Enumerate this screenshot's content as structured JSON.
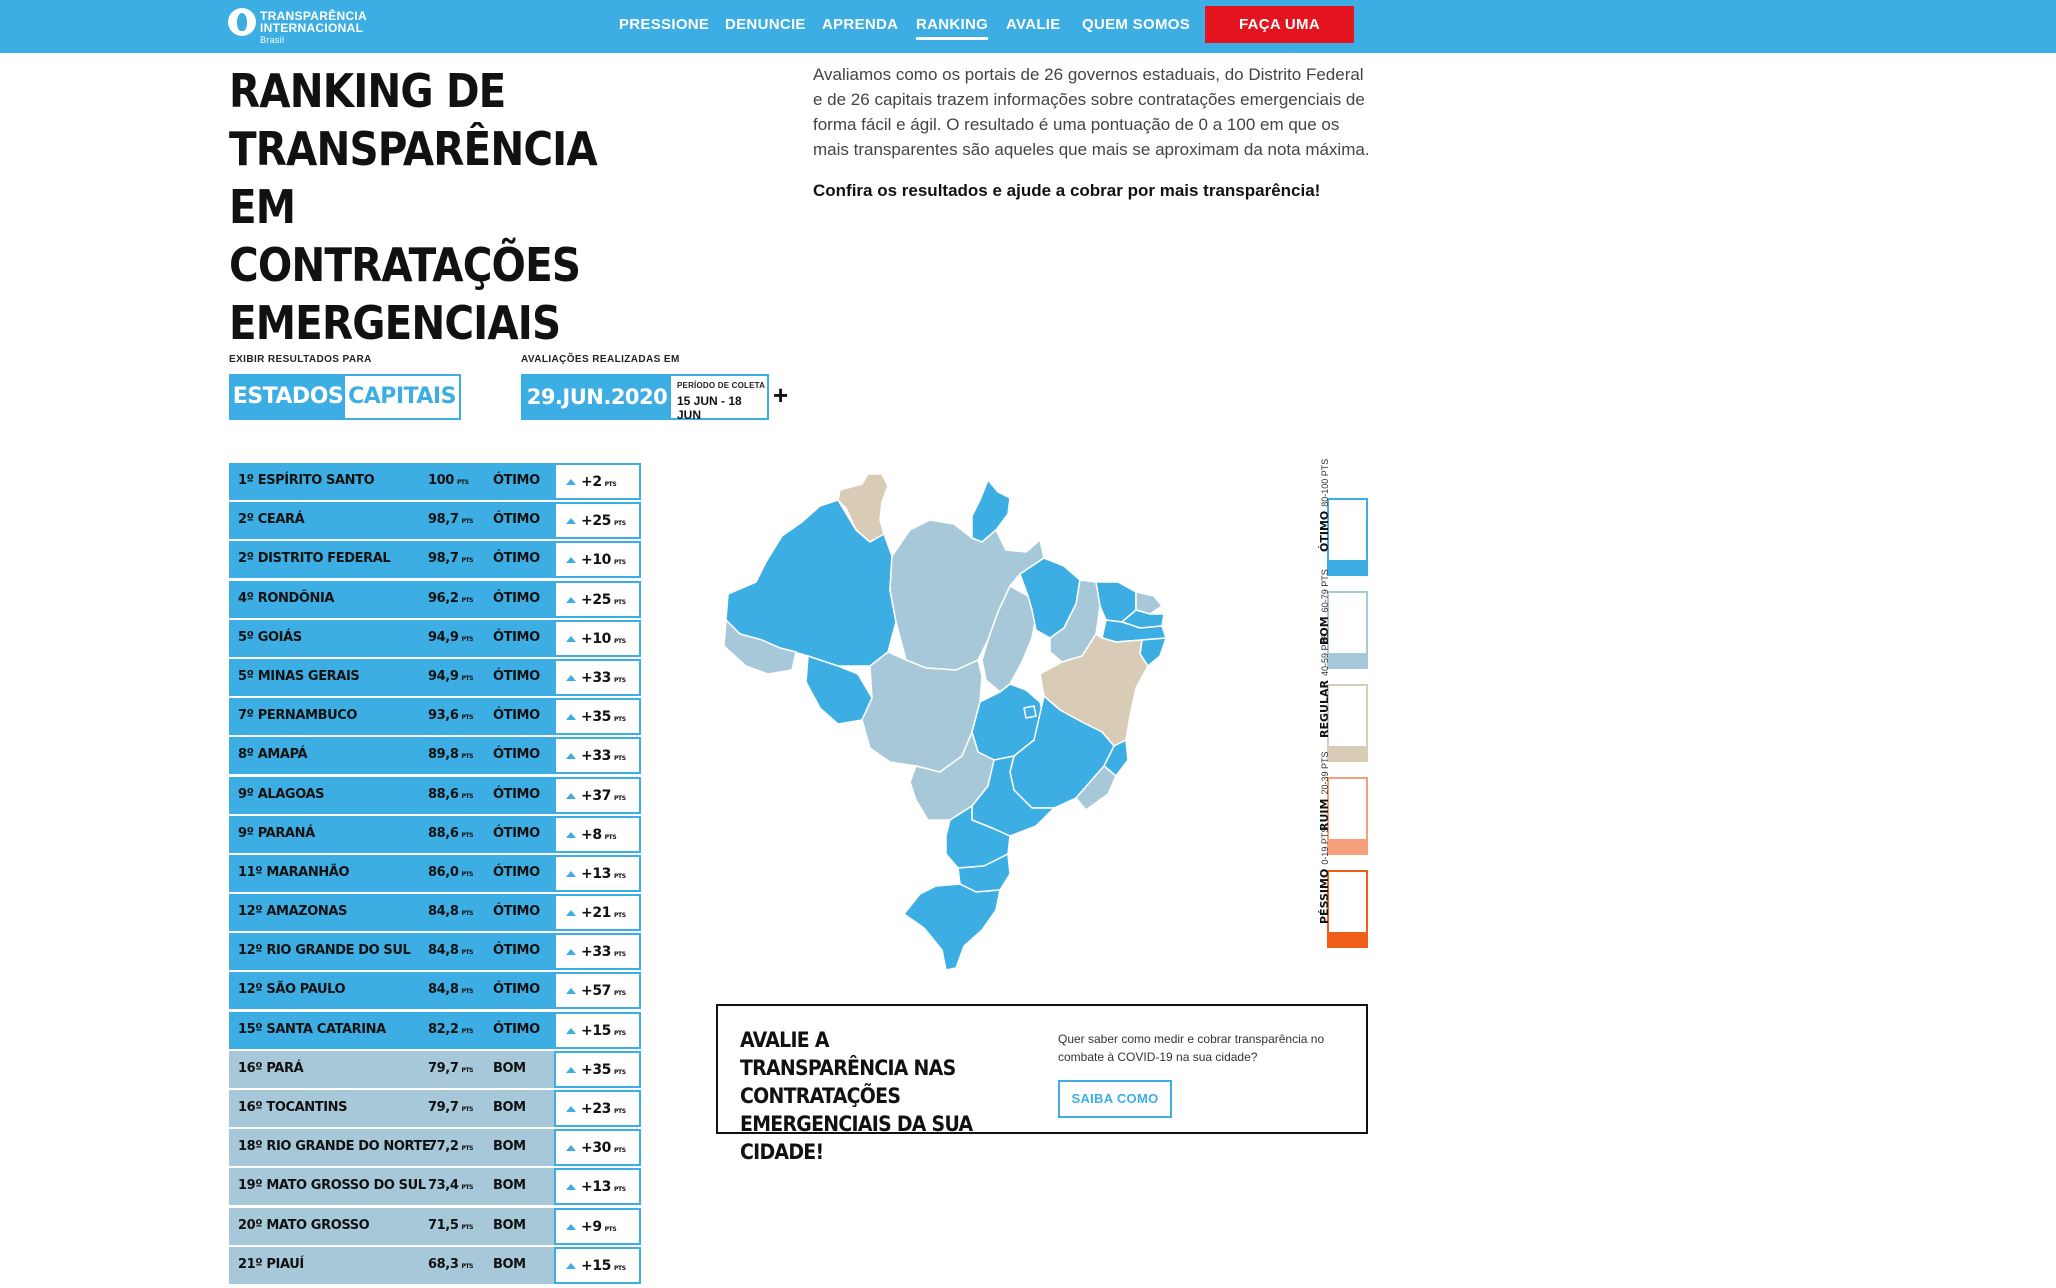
{
  "brand": {
    "line1": "TRANSPARÊNCIA",
    "line2": "INTERNACIONAL",
    "line3": "Brasil"
  },
  "nav": {
    "items": [
      {
        "label": "PRESSIONE"
      },
      {
        "label": "DENUNCIE"
      },
      {
        "label": "APRENDA"
      },
      {
        "label": "RANKING"
      },
      {
        "label": "AVALIE"
      },
      {
        "label": "QUEM SOMOS"
      }
    ],
    "active": "RANKING",
    "donate_label": "FAÇA UMA DOAÇÃO!"
  },
  "hero": {
    "title_lines": [
      "RANKING DE",
      "TRANSPARÊNCIA",
      "EM CONTRATAÇÕES",
      "EMERGENCIAIS"
    ],
    "intro": "Avaliamos como os portais de 26 governos estaduais, do Distrito Federal e de 26 capitais trazem informações sobre contratações emergenciais de forma fácil e ágil. O resultado é uma pontuação de 0 a 100 em que os mais transparentes são aqueles que mais se aproximam da nota máxima.",
    "cta": "Confira os resultados e ajude a cobrar por mais transparência!"
  },
  "controls": {
    "show_label": "EXIBIR RESULTADOS PARA",
    "option_states": "ESTADOS",
    "option_capitals": "CAPITAIS",
    "selected": "ESTADOS",
    "date_label": "AVALIAÇÕES REALIZADAS EM",
    "date": "29.JUN.2020",
    "period_label": "PERÍODO DE COLETA",
    "period": "15 JUN - 18 JUN",
    "expand_symbol": "+"
  },
  "ranking": {
    "unit": "PTS",
    "rows": [
      {
        "rank": "1º",
        "name": "ESPÍRITO SANTO",
        "score": "100",
        "category": "ÓTIMO",
        "delta": "+2"
      },
      {
        "rank": "2º",
        "name": "CEARÁ",
        "score": "98,7",
        "category": "ÓTIMO",
        "delta": "+25"
      },
      {
        "rank": "2º",
        "name": "DISTRITO FEDERAL",
        "score": "98,7",
        "category": "ÓTIMO",
        "delta": "+10"
      },
      {
        "rank": "4º",
        "name": "RONDÔNIA",
        "score": "96,2",
        "category": "ÓTIMO",
        "delta": "+25"
      },
      {
        "rank": "5º",
        "name": "GOIÁS",
        "score": "94,9",
        "category": "ÓTIMO",
        "delta": "+10"
      },
      {
        "rank": "5º",
        "name": "MINAS GERAIS",
        "score": "94,9",
        "category": "ÓTIMO",
        "delta": "+33"
      },
      {
        "rank": "7º",
        "name": "PERNAMBUCO",
        "score": "93,6",
        "category": "ÓTIMO",
        "delta": "+35"
      },
      {
        "rank": "8º",
        "name": "AMAPÁ",
        "score": "89,8",
        "category": "ÓTIMO",
        "delta": "+33"
      },
      {
        "rank": "9º",
        "name": "ALAGOAS",
        "score": "88,6",
        "category": "ÓTIMO",
        "delta": "+37"
      },
      {
        "rank": "9º",
        "name": "PARANÁ",
        "score": "88,6",
        "category": "ÓTIMO",
        "delta": "+8"
      },
      {
        "rank": "11º",
        "name": "MARANHÃO",
        "score": "86,0",
        "category": "ÓTIMO",
        "delta": "+13"
      },
      {
        "rank": "12º",
        "name": "AMAZONAS",
        "score": "84,8",
        "category": "ÓTIMO",
        "delta": "+21"
      },
      {
        "rank": "12º",
        "name": "RIO GRANDE DO SUL",
        "score": "84,8",
        "category": "ÓTIMO",
        "delta": "+33"
      },
      {
        "rank": "12º",
        "name": "SÃO PAULO",
        "score": "84,8",
        "category": "ÓTIMO",
        "delta": "+57"
      },
      {
        "rank": "15º",
        "name": "SANTA CATARINA",
        "score": "82,2",
        "category": "ÓTIMO",
        "delta": "+15"
      },
      {
        "rank": "16º",
        "name": "PARÁ",
        "score": "79,7",
        "category": "BOM",
        "delta": "+35"
      },
      {
        "rank": "16º",
        "name": "TOCANTINS",
        "score": "79,7",
        "category": "BOM",
        "delta": "+23"
      },
      {
        "rank": "18º",
        "name": "RIO GRANDE DO NORTE",
        "score": "77,2",
        "category": "BOM",
        "delta": "+30"
      },
      {
        "rank": "19º",
        "name": "MATO GROSSO DO SUL",
        "score": "73,4",
        "category": "BOM",
        "delta": "+13"
      },
      {
        "rank": "20º",
        "name": "MATO GROSSO",
        "score": "71,5",
        "category": "BOM",
        "delta": "+9"
      },
      {
        "rank": "21º",
        "name": "PIAUÍ",
        "score": "68,3",
        "category": "BOM",
        "delta": "+15"
      }
    ]
  },
  "legend": [
    {
      "name": "ÓTIMO",
      "range": "80-100 PTS",
      "color": "#3daee3"
    },
    {
      "name": "BOM",
      "range": "60-79 PTS",
      "color": "#a6c8d8"
    },
    {
      "name": "REGULAR",
      "range": "40-59 PTS",
      "color": "#d9ccb6"
    },
    {
      "name": "RUIM",
      "range": "20-39 PTS",
      "color": "#f5a07a"
    },
    {
      "name": "PÉSSIMO",
      "range": "0-19 PTS",
      "color": "#ef5f1a"
    }
  ],
  "cta_box": {
    "title": "AVALIE A TRANSPARÊNCIA NAS CONTRATAÇÕES EMERGENCIAIS DA SUA CIDADE!",
    "description": "Quer saber como medir e cobrar transparência no combate à COVID-19 na sua cidade?",
    "button": "SAIBA COMO"
  },
  "colors": {
    "primary": "#3daee3",
    "bom": "#a6c8d8",
    "regular": "#d9ccb6",
    "donate": "#e4141e"
  }
}
